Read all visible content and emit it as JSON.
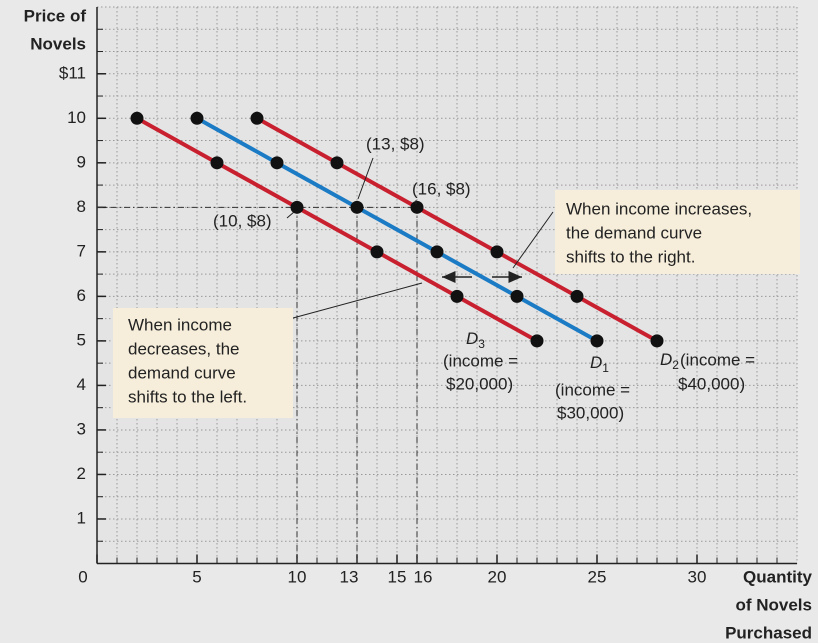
{
  "chart_data": {
    "type": "line",
    "y_label": [
      "Price of",
      "Novels"
    ],
    "x_label": [
      "Quantity",
      "of Novels",
      "Purchased"
    ],
    "xlim": [
      0,
      35
    ],
    "ylim": [
      0,
      12.5
    ],
    "xticks": [
      0,
      5,
      10,
      13,
      15,
      16,
      20,
      25,
      30
    ],
    "yticks": [
      1,
      2,
      3,
      4,
      5,
      6,
      7,
      8,
      9,
      10,
      {
        "value": 11,
        "label": "$11"
      }
    ],
    "grid": true,
    "xgrid_step": 1,
    "ygrid_step": 0.5,
    "series": [
      {
        "name": "D",
        "subscript": "3",
        "income": [
          "(income =",
          "$20,000)"
        ],
        "color": "#c8202f",
        "x": [
          2,
          6,
          10,
          14,
          18,
          22
        ],
        "values": [
          10,
          9,
          8,
          7,
          6,
          5
        ]
      },
      {
        "name": "D",
        "subscript": "1",
        "income": [
          "(income =",
          "$30,000)"
        ],
        "color": "#1b7bc4",
        "x": [
          5,
          9,
          13,
          17,
          21,
          25
        ],
        "values": [
          10,
          9,
          8,
          7,
          6,
          5
        ]
      },
      {
        "name": "D",
        "subscript": "2",
        "income": [
          "(income =",
          "$40,000)"
        ],
        "color": "#c8202f",
        "x": [
          8,
          12,
          16,
          20,
          24,
          28
        ],
        "values": [
          10,
          9,
          8,
          7,
          6,
          5
        ]
      }
    ],
    "point_labels": [
      "(13, $8)",
      "(16, $8)",
      "(10, $8)"
    ],
    "annotations": [
      [
        "When income increases,",
        "the demand curve",
        "shifts to the right."
      ],
      [
        "When income",
        "decreases, the",
        "demand curve",
        "shifts to the left."
      ]
    ]
  }
}
